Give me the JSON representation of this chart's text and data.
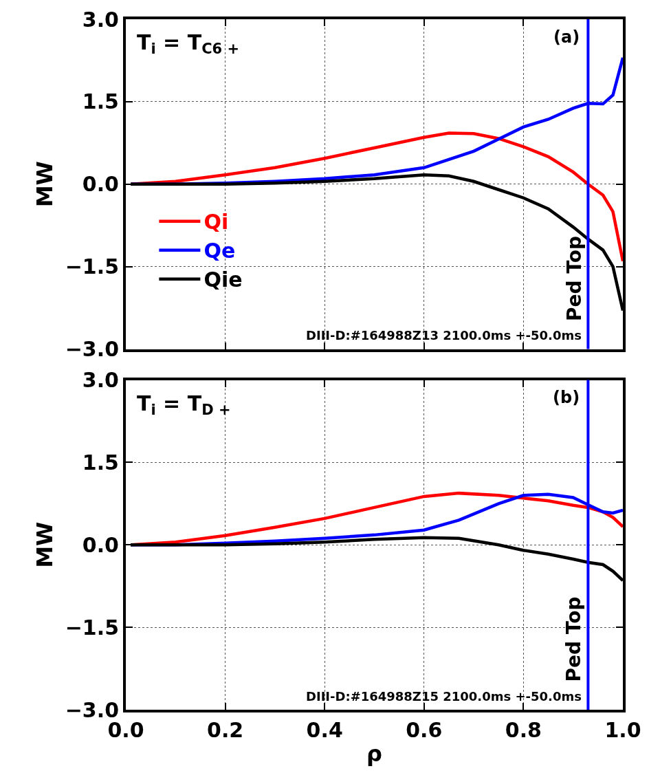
{
  "chart_data": [
    {
      "type": "line",
      "annotations": [
        "T$_{i}$ = T$_{C6 +}$",
        "(a)",
        "DIII-D:#164988Z13 2100.0ms +-50.0ms"
      ],
      "ylabel": "MW",
      "x": [
        0.01,
        0.1,
        0.2,
        0.3,
        0.4,
        0.5,
        0.6,
        0.65,
        0.7,
        0.75,
        0.8,
        0.85,
        0.9,
        0.93,
        0.96,
        0.98,
        1.0
      ],
      "series": [
        {
          "name": "Qi",
          "color": "#ff0000",
          "values": [
            0.0,
            0.05,
            0.17,
            0.3,
            0.47,
            0.66,
            0.85,
            0.93,
            0.92,
            0.83,
            0.68,
            0.5,
            0.22,
            0.0,
            -0.2,
            -0.5,
            -1.4
          ]
        },
        {
          "name": "Qe",
          "color": "#0000ff",
          "values": [
            0.0,
            0.0,
            0.02,
            0.05,
            0.1,
            0.17,
            0.3,
            0.45,
            0.6,
            0.82,
            1.04,
            1.18,
            1.38,
            1.47,
            1.46,
            1.62,
            2.3
          ]
        },
        {
          "name": "Qie",
          "color": "#000000",
          "values": [
            0.0,
            0.0,
            0.0,
            0.02,
            0.05,
            0.1,
            0.17,
            0.15,
            0.05,
            -0.1,
            -0.25,
            -0.45,
            -0.78,
            -1.0,
            -1.2,
            -1.5,
            -2.3
          ]
        }
      ],
      "xlim": [
        0,
        1
      ],
      "xticks": [
        {
          "value": 0,
          "label": null
        },
        {
          "value": 0.2,
          "label": null
        },
        {
          "value": 0.4,
          "label": null
        },
        {
          "value": 0.6,
          "label": null
        },
        {
          "value": 0.8,
          "label": null
        },
        {
          "value": 1,
          "label": null
        }
      ],
      "ylim": [
        -3,
        3
      ],
      "yticks": [
        {
          "value": -3,
          "label": "−3.0"
        },
        {
          "value": -1.5,
          "label": "−1.5"
        },
        {
          "value": 0,
          "label": "0.0"
        },
        {
          "value": 1.5,
          "label": "1.5"
        },
        {
          "value": 3,
          "label": "3.0"
        }
      ],
      "tick_labels": "y",
      "grid": true,
      "legend": "left",
      "marker": "none",
      "line_style": "solid",
      "ref_lines": [
        {
          "axis": "x",
          "value": 0.93,
          "label": "Ped Top",
          "color": "#0000ff"
        }
      ]
    },
    {
      "type": "line",
      "annotations": [
        "T$_{i}$ = T$_{D +}$",
        "(b)",
        "DIII-D:#164988Z15 2100.0ms +-50.0ms"
      ],
      "xlabel": "ρ",
      "ylabel": "MW",
      "x": [
        0.01,
        0.1,
        0.2,
        0.3,
        0.4,
        0.5,
        0.6,
        0.67,
        0.75,
        0.8,
        0.85,
        0.9,
        0.93,
        0.96,
        0.98,
        1.0
      ],
      "series": [
        {
          "color": "#ff0000",
          "values": [
            0.0,
            0.05,
            0.17,
            0.32,
            0.48,
            0.68,
            0.88,
            0.94,
            0.9,
            0.85,
            0.8,
            0.72,
            0.68,
            0.6,
            0.5,
            0.33
          ]
        },
        {
          "color": "#0000ff",
          "values": [
            0.0,
            0.0,
            0.03,
            0.07,
            0.12,
            0.18,
            0.27,
            0.45,
            0.75,
            0.9,
            0.92,
            0.86,
            0.73,
            0.6,
            0.58,
            0.63
          ]
        },
        {
          "color": "#000000",
          "values": [
            0.0,
            0.0,
            0.0,
            0.02,
            0.05,
            0.1,
            0.13,
            0.12,
            0.0,
            -0.1,
            -0.17,
            -0.26,
            -0.32,
            -0.36,
            -0.48,
            -0.65
          ]
        }
      ],
      "xlim": [
        0,
        1
      ],
      "xticks": [
        {
          "value": 0,
          "label": "0.0"
        },
        {
          "value": 0.2,
          "label": "0.2"
        },
        {
          "value": 0.4,
          "label": "0.4"
        },
        {
          "value": 0.6,
          "label": "0.6"
        },
        {
          "value": 0.8,
          "label": "0.8"
        },
        {
          "value": 1,
          "label": "1.0"
        }
      ],
      "ylim": [
        -3,
        3
      ],
      "yticks": [
        {
          "value": -3,
          "label": "−3.0"
        },
        {
          "value": -1.5,
          "label": "−1.5"
        },
        {
          "value": 0,
          "label": "0.0"
        },
        {
          "value": 1.5,
          "label": "1.5"
        },
        {
          "value": 3,
          "label": "3.0"
        }
      ],
      "grid": true,
      "marker": "none",
      "line_style": "solid",
      "ref_lines": [
        {
          "axis": "x",
          "value": 0.93,
          "label": "Ped Top",
          "color": "#0000ff"
        }
      ]
    }
  ]
}
